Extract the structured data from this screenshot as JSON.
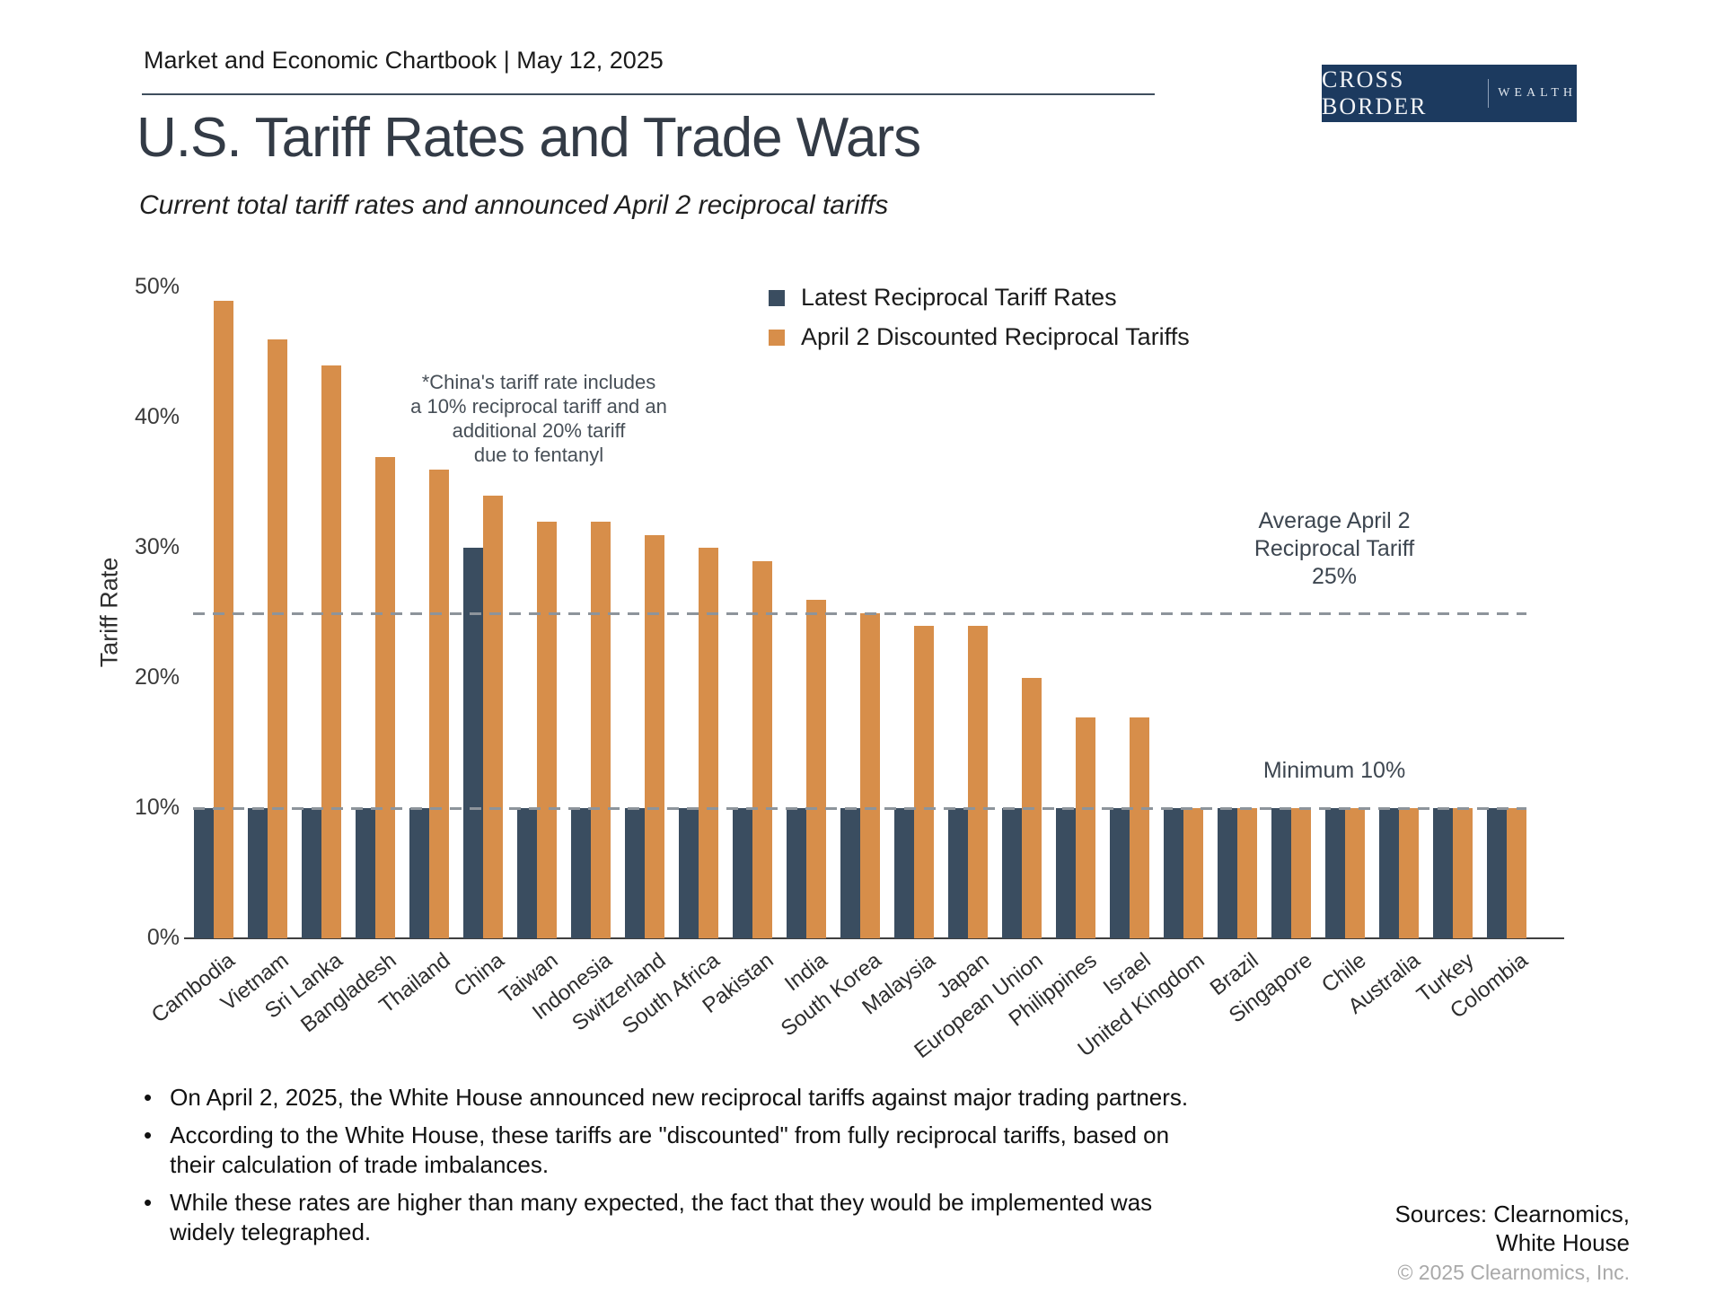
{
  "header": {
    "chartbook": "Market and Economic Chartbook | May 12, 2025"
  },
  "logo": {
    "primary": "CROSS BORDER",
    "secondary": "WEALTH",
    "background": "#1c3a5f"
  },
  "title": "U.S. Tariff Rates and Trade Wars",
  "subtitle": "Current total tariff rates and announced April 2 reciprocal tariffs",
  "chart_data": {
    "type": "bar",
    "categories": [
      "Cambodia",
      "Vietnam",
      "Sri Lanka",
      "Bangladesh",
      "Thailand",
      "China",
      "Taiwan",
      "Indonesia",
      "Switzerland",
      "South Africa",
      "Pakistan",
      "India",
      "South Korea",
      "Malaysia",
      "Japan",
      "European Union",
      "Philippines",
      "Israel",
      "United Kingdom",
      "Brazil",
      "Singapore",
      "Chile",
      "Australia",
      "Turkey",
      "Colombia"
    ],
    "series": [
      {
        "name": "Latest Reciprocal Tariff Rates",
        "color": "#3a4d60",
        "values": [
          10,
          10,
          10,
          10,
          10,
          30,
          10,
          10,
          10,
          10,
          10,
          10,
          10,
          10,
          10,
          10,
          10,
          10,
          10,
          10,
          10,
          10,
          10,
          10,
          10
        ]
      },
      {
        "name": "April 2 Discounted Reciprocal Tariffs",
        "color": "#d78e4a",
        "values": [
          49,
          46,
          44,
          37,
          36,
          34,
          32,
          32,
          31,
          30,
          29,
          26,
          25,
          24,
          24,
          20,
          17,
          17,
          10,
          10,
          10,
          10,
          10,
          10,
          10
        ]
      }
    ],
    "ylabel": "Tariff Rate",
    "ylim": [
      0,
      50
    ],
    "yticks": [
      0,
      10,
      20,
      30,
      40,
      50
    ],
    "ytick_suffix": "%",
    "grid": "off",
    "legend_position": "upper-center",
    "reference_lines": [
      {
        "value": 25,
        "label": "Average April 2\nReciprocal Tariff\n25%"
      },
      {
        "value": 10,
        "label": "Minimum 10%"
      }
    ],
    "annotations": {
      "china_note": "*China's tariff rate includes\na 10% reciprocal tariff and an\nadditional 20% tariff\ndue to fentanyl"
    },
    "reference_line_color": "#8d949b"
  },
  "footnotes": [
    "On April 2, 2025, the White House announced new reciprocal tariffs against major trading partners.",
    "According to the White House, these tariffs are \"discounted\" from fully reciprocal tariffs, based on their calculation of trade imbalances.",
    "While these rates are higher than many expected, the fact that they would be implemented was widely telegraphed."
  ],
  "sources": {
    "line1": "Sources: Clearnomics,",
    "line2": "White House",
    "copyright": "© 2025 Clearnomics, Inc."
  }
}
